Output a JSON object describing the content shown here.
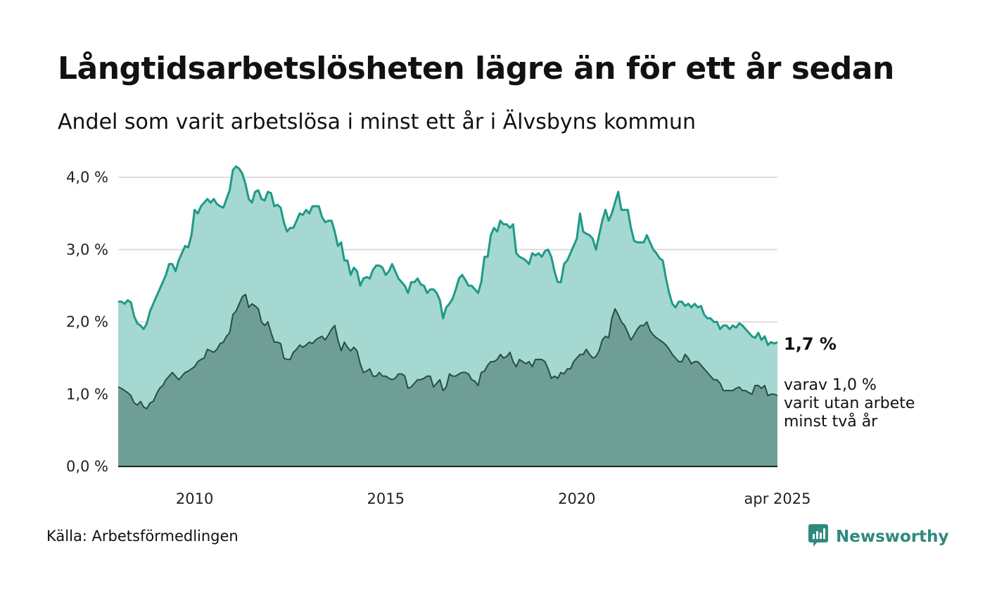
{
  "title": "Långtidsarbetslösheten lägre än för ett år sedan",
  "subtitle": "Andel som varit arbetslösa i minst ett år i Älvsbyns kommun",
  "source": "Källa: Arbetsförmedlingen",
  "brand": {
    "name": "Newsworthy",
    "icon": "newsworthy-logo-icon"
  },
  "colors": {
    "series_main_line": "#1e9a87",
    "series_main_fill": "#a5d8d1",
    "series_sub_line": "#264e46",
    "series_sub_fill": "#6f9e96",
    "grid": "#dddddd",
    "brand": "#2e8a7c"
  },
  "annotations": {
    "main_label": "1,7 %",
    "sub_label_lines": [
      "varav 1,0 %",
      "varit utan arbete",
      "minst två år"
    ]
  },
  "chart_data": {
    "type": "area",
    "x_start": "2008-01",
    "x_end": "2025-04",
    "x_frequency": "monthly",
    "y_ticks": [
      "0,0 %",
      "1,0 %",
      "2,0 %",
      "3,0 %",
      "4,0 %"
    ],
    "x_ticks": [
      {
        "label": "2010",
        "date": "2010-01"
      },
      {
        "label": "2015",
        "date": "2015-01"
      },
      {
        "label": "2020",
        "date": "2020-01"
      },
      {
        "label": "apr 2025",
        "date": "2025-04"
      }
    ],
    "ylim": [
      0,
      4.0
    ],
    "grid": true,
    "series": [
      {
        "values": [
          2.28,
          2.28,
          2.25,
          2.3,
          2.27,
          2.08,
          1.98,
          1.95,
          1.9,
          1.98,
          2.15,
          2.25,
          2.35,
          2.45,
          2.55,
          2.65,
          2.8,
          2.8,
          2.7,
          2.85,
          2.95,
          3.05,
          3.03,
          3.2,
          3.55,
          3.5,
          3.6,
          3.65,
          3.7,
          3.65,
          3.7,
          3.63,
          3.6,
          3.58,
          3.7,
          3.82,
          4.1,
          4.15,
          4.12,
          4.05,
          3.9,
          3.7,
          3.65,
          3.8,
          3.82,
          3.7,
          3.68,
          3.8,
          3.78,
          3.6,
          3.62,
          3.58,
          3.38,
          3.25,
          3.3,
          3.3,
          3.4,
          3.5,
          3.48,
          3.55,
          3.5,
          3.6,
          3.6,
          3.6,
          3.45,
          3.38,
          3.4,
          3.4,
          3.25,
          3.05,
          3.1,
          2.85,
          2.85,
          2.65,
          2.75,
          2.7,
          2.5,
          2.6,
          2.62,
          2.6,
          2.72,
          2.78,
          2.78,
          2.75,
          2.65,
          2.7,
          2.8,
          2.7,
          2.6,
          2.55,
          2.5,
          2.4,
          2.55,
          2.55,
          2.6,
          2.52,
          2.5,
          2.4,
          2.45,
          2.45,
          2.4,
          2.3,
          2.05,
          2.2,
          2.25,
          2.32,
          2.45,
          2.6,
          2.65,
          2.58,
          2.5,
          2.5,
          2.45,
          2.4,
          2.55,
          2.9,
          2.9,
          3.2,
          3.3,
          3.25,
          3.4,
          3.35,
          3.35,
          3.3,
          3.35,
          2.95,
          2.9,
          2.88,
          2.85,
          2.8,
          2.95,
          2.92,
          2.95,
          2.9,
          2.98,
          3.0,
          2.9,
          2.7,
          2.55,
          2.55,
          2.8,
          2.85,
          2.95,
          3.05,
          3.15,
          3.5,
          3.25,
          3.22,
          3.2,
          3.15,
          3.0,
          3.2,
          3.4,
          3.55,
          3.4,
          3.5,
          3.65,
          3.8,
          3.55,
          3.55,
          3.55,
          3.3,
          3.12,
          3.1,
          3.1,
          3.1,
          3.2,
          3.1,
          3.0,
          2.95,
          2.88,
          2.85,
          2.6,
          2.4,
          2.25,
          2.2,
          2.28,
          2.28,
          2.22,
          2.25,
          2.2,
          2.25,
          2.2,
          2.22,
          2.1,
          2.05,
          2.05,
          2.0,
          2.0,
          1.9,
          1.95,
          1.95,
          1.9,
          1.95,
          1.92,
          1.98,
          1.95,
          1.9,
          1.85,
          1.8,
          1.78,
          1.85,
          1.75,
          1.8,
          1.68,
          1.72,
          1.7,
          1.72
        ]
      },
      {
        "values": [
          1.1,
          1.08,
          1.05,
          1.02,
          0.98,
          0.88,
          0.85,
          0.9,
          0.82,
          0.8,
          0.88,
          0.9,
          1.0,
          1.08,
          1.12,
          1.2,
          1.25,
          1.3,
          1.25,
          1.2,
          1.25,
          1.3,
          1.32,
          1.35,
          1.38,
          1.45,
          1.48,
          1.5,
          1.62,
          1.6,
          1.58,
          1.62,
          1.7,
          1.72,
          1.8,
          1.85,
          2.1,
          2.15,
          2.25,
          2.35,
          2.38,
          2.2,
          2.25,
          2.22,
          2.18,
          2.0,
          1.95,
          2.0,
          1.85,
          1.72,
          1.72,
          1.7,
          1.5,
          1.48,
          1.48,
          1.58,
          1.62,
          1.68,
          1.65,
          1.68,
          1.72,
          1.7,
          1.75,
          1.78,
          1.8,
          1.75,
          1.82,
          1.9,
          1.95,
          1.75,
          1.6,
          1.72,
          1.65,
          1.6,
          1.65,
          1.6,
          1.42,
          1.3,
          1.32,
          1.35,
          1.25,
          1.25,
          1.3,
          1.25,
          1.25,
          1.22,
          1.2,
          1.22,
          1.28,
          1.28,
          1.25,
          1.08,
          1.1,
          1.15,
          1.2,
          1.2,
          1.22,
          1.25,
          1.25,
          1.1,
          1.15,
          1.2,
          1.05,
          1.1,
          1.28,
          1.25,
          1.25,
          1.28,
          1.3,
          1.3,
          1.28,
          1.2,
          1.18,
          1.12,
          1.3,
          1.32,
          1.4,
          1.45,
          1.45,
          1.48,
          1.55,
          1.5,
          1.52,
          1.58,
          1.45,
          1.38,
          1.48,
          1.45,
          1.42,
          1.45,
          1.38,
          1.48,
          1.48,
          1.48,
          1.45,
          1.35,
          1.22,
          1.25,
          1.22,
          1.3,
          1.28,
          1.35,
          1.35,
          1.45,
          1.5,
          1.55,
          1.55,
          1.62,
          1.55,
          1.5,
          1.52,
          1.6,
          1.75,
          1.8,
          1.78,
          2.05,
          2.18,
          2.1,
          2.0,
          1.95,
          1.85,
          1.75,
          1.82,
          1.9,
          1.95,
          1.95,
          2.0,
          1.88,
          1.82,
          1.78,
          1.75,
          1.72,
          1.68,
          1.62,
          1.55,
          1.5,
          1.45,
          1.45,
          1.55,
          1.5,
          1.42,
          1.45,
          1.45,
          1.4,
          1.35,
          1.3,
          1.25,
          1.2,
          1.2,
          1.15,
          1.05,
          1.05,
          1.05,
          1.05,
          1.08,
          1.1,
          1.05,
          1.05,
          1.02,
          1.0,
          1.12,
          1.12,
          1.08,
          1.12,
          0.98,
          1.0,
          1.0,
          0.98
        ]
      }
    ]
  }
}
